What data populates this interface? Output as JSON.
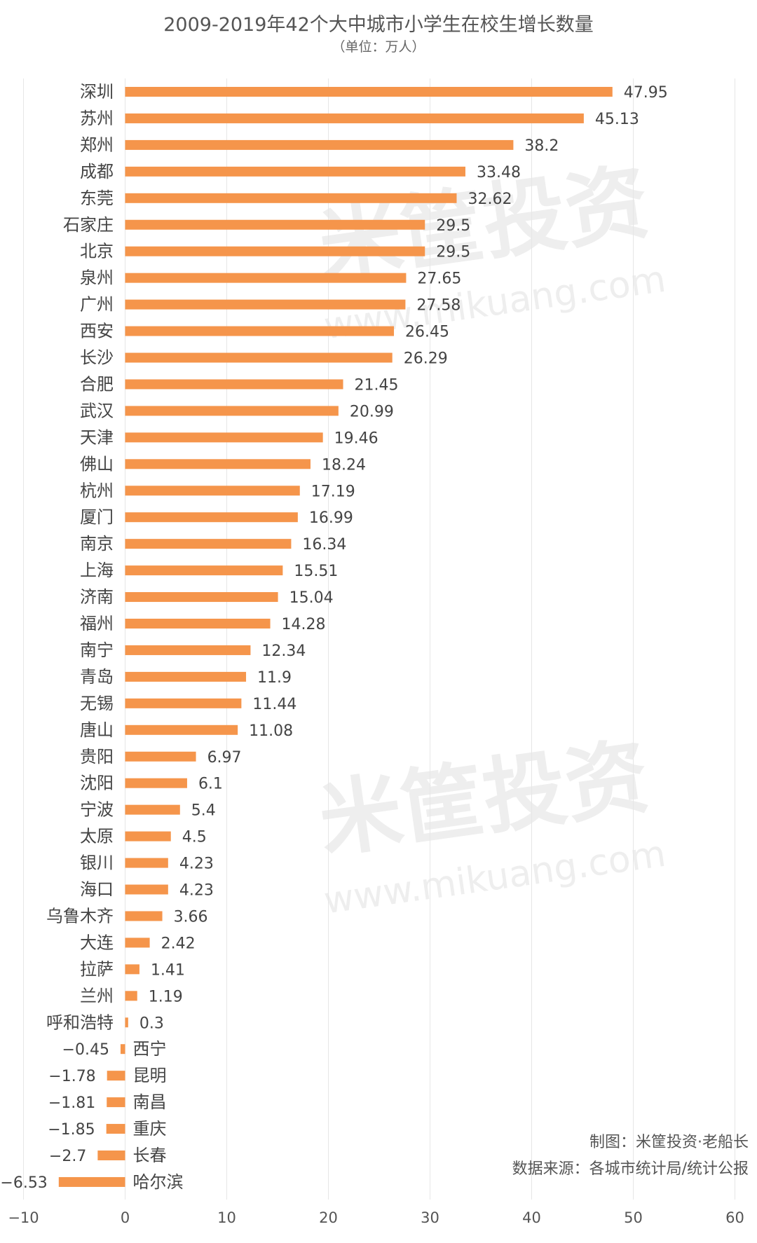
{
  "chart_data": {
    "type": "bar",
    "orientation": "horizontal",
    "title": "2009-2019年42个大中城市小学生在校生增长数量",
    "subtitle": "（单位：万人）",
    "xlim": [
      -10,
      60
    ],
    "xticks": [
      -10,
      0,
      10,
      20,
      30,
      40,
      50,
      60
    ],
    "grid": true,
    "bar_color": "#F5954B",
    "categories": [
      "深圳",
      "苏州",
      "郑州",
      "成都",
      "东莞",
      "石家庄",
      "北京",
      "泉州",
      "广州",
      "西安",
      "长沙",
      "合肥",
      "武汉",
      "天津",
      "佛山",
      "杭州",
      "厦门",
      "南京",
      "上海",
      "济南",
      "福州",
      "南宁",
      "青岛",
      "无锡",
      "唐山",
      "贵阳",
      "沈阳",
      "宁波",
      "太原",
      "银川",
      "海口",
      "乌鲁木齐",
      "大连",
      "拉萨",
      "兰州",
      "呼和浩特",
      "西宁",
      "昆明",
      "南昌",
      "重庆",
      "长春",
      "哈尔滨"
    ],
    "values": [
      47.95,
      45.13,
      38.2,
      33.48,
      32.62,
      29.5,
      29.5,
      27.65,
      27.58,
      26.45,
      26.29,
      21.45,
      20.99,
      19.46,
      18.24,
      17.19,
      16.99,
      16.34,
      15.51,
      15.04,
      14.28,
      12.34,
      11.9,
      11.44,
      11.08,
      6.97,
      6.1,
      5.4,
      4.5,
      4.23,
      4.23,
      3.66,
      2.42,
      1.41,
      1.19,
      0.3,
      -0.45,
      -1.78,
      -1.81,
      -1.85,
      -2.7,
      -6.53
    ]
  },
  "credits": {
    "maker": "制图：米筐投资·老船长",
    "source": "数据来源：各城市统计局/统计公报"
  },
  "watermark": {
    "brand": "米筐投资",
    "url": "www.mikuang.com"
  }
}
